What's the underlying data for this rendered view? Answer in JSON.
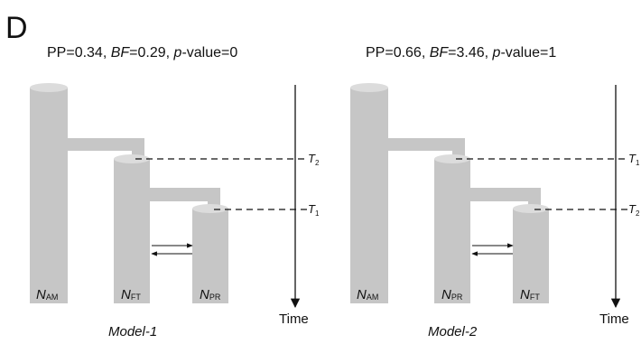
{
  "panel_label": "D",
  "models": [
    {
      "header": {
        "pp_label": "PP=0.34, ",
        "bf_label": "BF",
        "bf_value": "=0.29, ",
        "p_label": "p",
        "p_value": "-value=0"
      },
      "populations": [
        {
          "main": "N",
          "sub": "AM"
        },
        {
          "main": "N",
          "sub": "FT"
        },
        {
          "main": "N",
          "sub": "PR"
        }
      ],
      "times": [
        {
          "main": "T",
          "sub": "2"
        },
        {
          "main": "T",
          "sub": "1"
        }
      ],
      "time_label": "Time",
      "model_label": "Model-1"
    },
    {
      "header": {
        "pp_label": "PP=0.66, ",
        "bf_label": "BF",
        "bf_value": "=3.46, ",
        "p_label": "p",
        "p_value": "-value=1"
      },
      "populations": [
        {
          "main": "N",
          "sub": "AM"
        },
        {
          "main": "N",
          "sub": "PR"
        },
        {
          "main": "N",
          "sub": "FT"
        }
      ],
      "times": [
        {
          "main": "T",
          "sub": "1"
        },
        {
          "main": "T",
          "sub": "2"
        }
      ],
      "time_label": "Time",
      "model_label": "Model-2"
    }
  ]
}
